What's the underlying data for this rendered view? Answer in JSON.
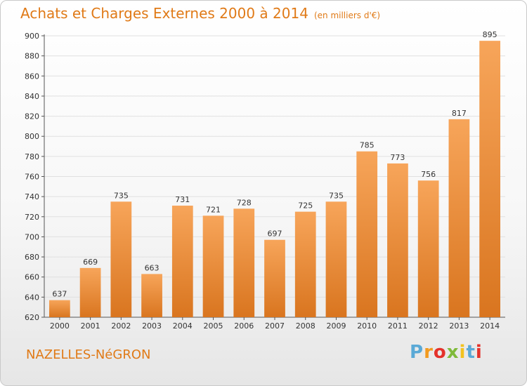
{
  "header": {
    "title": "Achats et Charges Externes 2000 à 2014",
    "unit": "(en milliers d'€)"
  },
  "footer": {
    "city": "NAZELLES-NéGRON",
    "brand": "Proxiti"
  },
  "colors": {
    "bar_top": "#f7a55a",
    "bar_bottom": "#d9751f",
    "accent": "#e07a17",
    "grid": "#e0e0e0"
  },
  "chart_data": {
    "type": "bar",
    "title": "Achats et Charges Externes 2000 à 2014",
    "subtitle": "(en milliers d'€)",
    "xlabel": "",
    "ylabel": "",
    "categories": [
      "2000",
      "2001",
      "2002",
      "2003",
      "2004",
      "2005",
      "2006",
      "2007",
      "2008",
      "2009",
      "2010",
      "2011",
      "2012",
      "2013",
      "2014"
    ],
    "values": [
      637,
      669,
      735,
      663,
      731,
      721,
      728,
      697,
      725,
      735,
      785,
      773,
      756,
      817,
      895
    ],
    "ylim": [
      620,
      900
    ],
    "yticks": [
      620,
      640,
      660,
      680,
      700,
      720,
      740,
      760,
      780,
      800,
      820,
      840,
      860,
      880,
      900
    ],
    "grid": true,
    "legend": "none"
  }
}
